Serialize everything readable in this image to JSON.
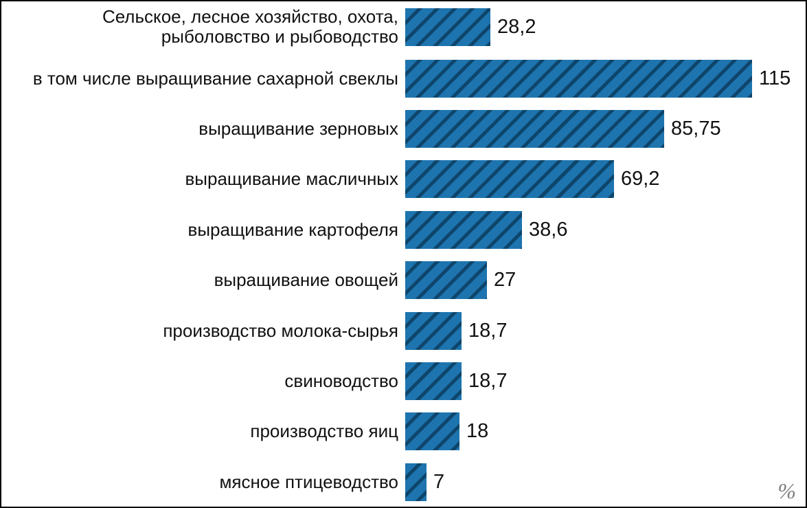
{
  "chart_data": {
    "type": "bar",
    "orientation": "horizontal",
    "title": "",
    "unit_label": "%",
    "xlim": [
      0,
      115
    ],
    "grid": "off",
    "legend": "none",
    "bar_color": "#1d74ae",
    "hatch_color": "#0e456b",
    "categories": [
      "Сельское, лесное хозяйство, охота, рыболовство и рыбоводство",
      "в том числе выращивание сахарной свеклы",
      "выращивание зерновых",
      "выращивание масличных",
      "выращивание картофеля",
      "выращивание овощей",
      "производство молока-сырья",
      "свиноводство",
      "производство яиц",
      "мясное птицеводство"
    ],
    "values": [
      28.2,
      115,
      85.75,
      69.2,
      38.6,
      27,
      18.7,
      18.7,
      18,
      7
    ],
    "value_labels": [
      "28,2",
      "115",
      "85,75",
      "69,2",
      "38,6",
      "27",
      "18,7",
      "18,7",
      "18",
      "7"
    ]
  }
}
